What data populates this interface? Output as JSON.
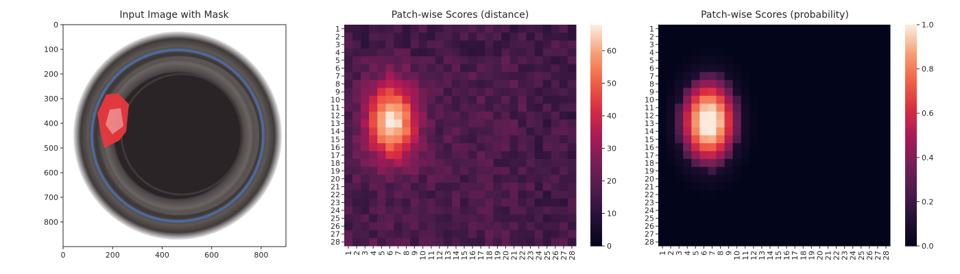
{
  "chart_data": [
    {
      "type": "image",
      "title": "Input Image with Mask",
      "xlim": [
        0,
        900
      ],
      "ylim": [
        900,
        0
      ],
      "x_ticks": [
        "0",
        "200",
        "400",
        "600",
        "800"
      ],
      "y_ticks": [
        "0",
        "100",
        "200",
        "300",
        "400",
        "500",
        "600",
        "700",
        "800"
      ],
      "image": {
        "description_icon": "bottle-top-view",
        "mask_color": "#e8383c",
        "ring_color": "#5a5450",
        "inner_color": "#2a2426",
        "blue_ring_color": "#4d6fa8"
      }
    },
    {
      "type": "heatmap",
      "title": "Patch-wise Scores (distance)",
      "rows": 28,
      "cols": 28,
      "x_ticks": [
        "1",
        "2",
        "3",
        "4",
        "5",
        "6",
        "7",
        "8",
        "9",
        "10",
        "11",
        "12",
        "13",
        "14",
        "15",
        "16",
        "17",
        "18",
        "19",
        "20",
        "21",
        "22",
        "23",
        "24",
        "25",
        "26",
        "27",
        "28"
      ],
      "y_ticks": [
        "1",
        "2",
        "3",
        "4",
        "5",
        "6",
        "7",
        "8",
        "9",
        "10",
        "11",
        "12",
        "13",
        "14",
        "15",
        "16",
        "17",
        "18",
        "19",
        "20",
        "21",
        "22",
        "23",
        "24",
        "25",
        "26",
        "27",
        "28"
      ],
      "vmin": 0,
      "vmax": 68,
      "colorbar_ticks": [
        "0",
        "10",
        "20",
        "30",
        "40",
        "50",
        "60"
      ],
      "colorbar_values": [
        0,
        10,
        20,
        30,
        40,
        50,
        60
      ],
      "hotspot": {
        "center_col": 6.3,
        "center_row": 12.8,
        "peak": 68,
        "spread_col": 2.1,
        "spread_row": 3.4,
        "baseline": 17
      }
    },
    {
      "type": "heatmap",
      "title": "Patch-wise Scores (probability)",
      "rows": 28,
      "cols": 28,
      "x_ticks": [
        "1",
        "2",
        "3",
        "4",
        "5",
        "6",
        "7",
        "8",
        "9",
        "10",
        "11",
        "12",
        "13",
        "14",
        "15",
        "16",
        "17",
        "18",
        "19",
        "20",
        "21",
        "22",
        "23",
        "24",
        "25",
        "26",
        "27",
        "28"
      ],
      "y_ticks": [
        "1",
        "2",
        "3",
        "4",
        "5",
        "6",
        "7",
        "8",
        "9",
        "10",
        "11",
        "12",
        "13",
        "14",
        "15",
        "16",
        "17",
        "18",
        "19",
        "20",
        "21",
        "22",
        "23",
        "24",
        "25",
        "26",
        "27",
        "28"
      ],
      "vmin": 0.0,
      "vmax": 1.0,
      "colorbar_ticks": [
        "0.0",
        "0.2",
        "0.4",
        "0.6",
        "0.8",
        "1.0"
      ],
      "colorbar_values": [
        0.0,
        0.2,
        0.4,
        0.6,
        0.8,
        1.0
      ],
      "hotspot": {
        "center_col": 6.6,
        "center_row": 12.8,
        "peak": 1.0,
        "spread_col": 2.0,
        "spread_row": 3.2,
        "baseline": 0.0
      }
    }
  ]
}
